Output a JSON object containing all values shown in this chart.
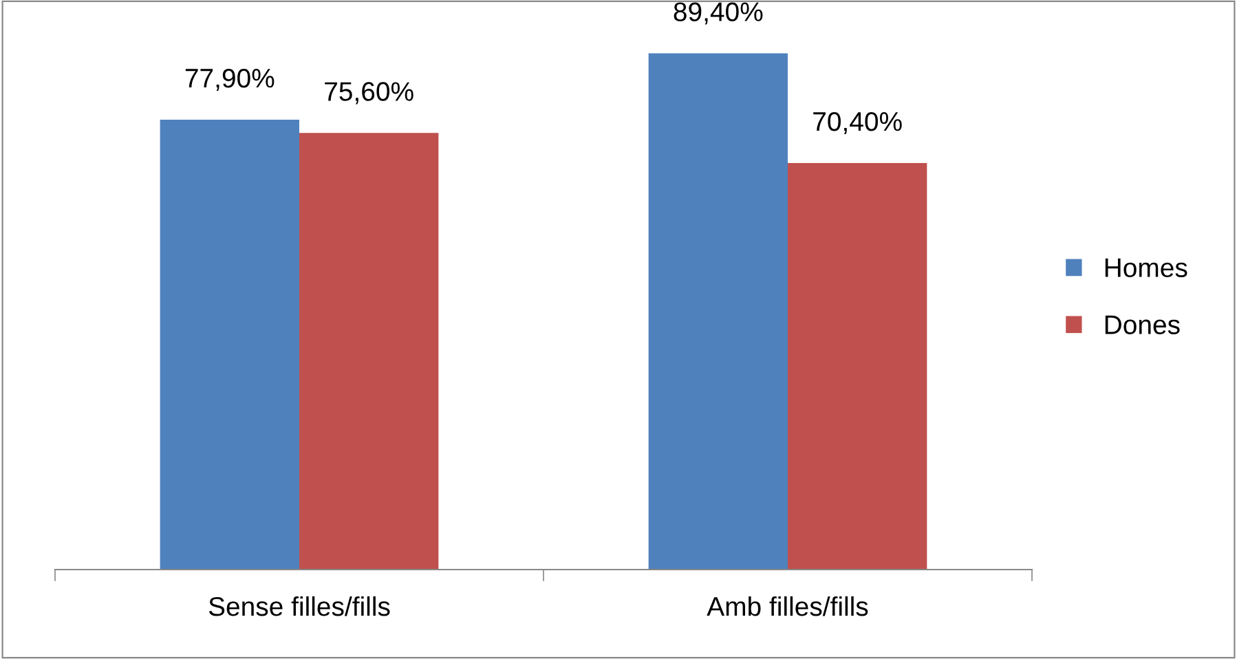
{
  "chart_data": {
    "type": "bar",
    "categories": [
      "Sense filles/fills",
      "Amb filles/fills"
    ],
    "series": [
      {
        "name": "Homes",
        "color": "#4f81bd",
        "values": [
          77.9,
          89.4
        ],
        "value_labels": [
          "77,90%",
          "89,40%"
        ]
      },
      {
        "name": "Dones",
        "color": "#c0504d",
        "values": [
          75.6,
          70.4
        ],
        "value_labels": [
          "75,60%",
          "70,40%"
        ]
      }
    ],
    "legend": "right",
    "grid": false,
    "tick_labels": "x"
  }
}
